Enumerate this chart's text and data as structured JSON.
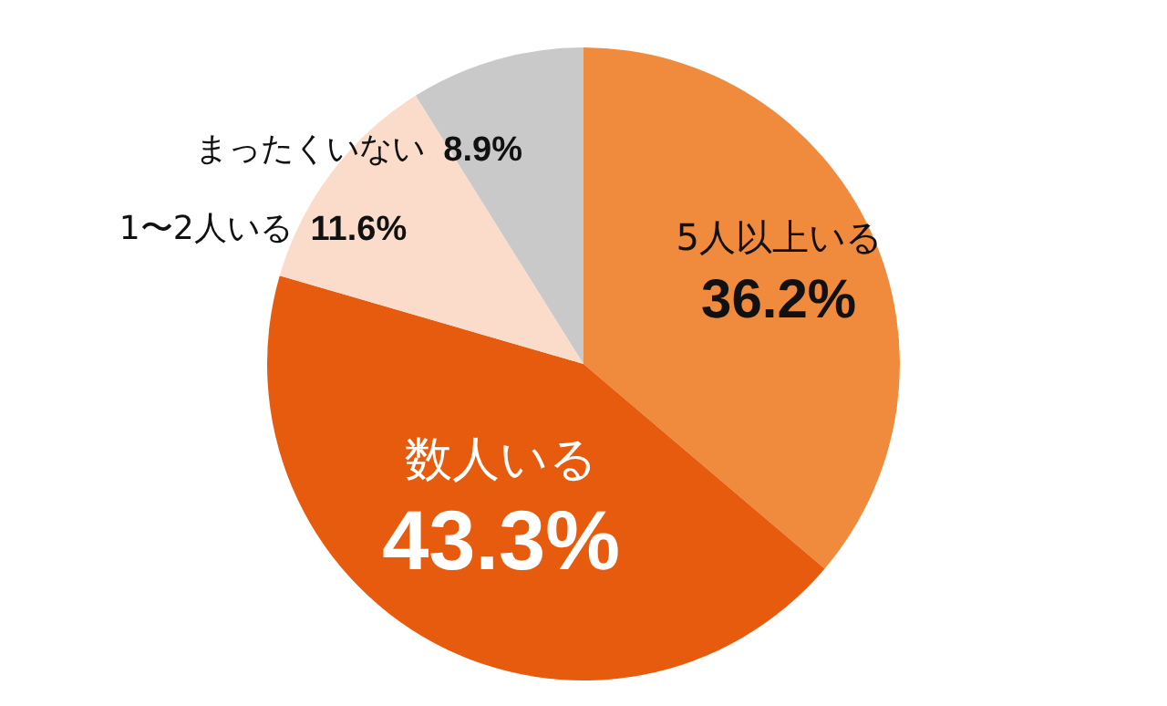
{
  "chart_data": {
    "type": "pie",
    "categories": [
      "5人以上いる",
      "数人いる",
      "1〜2人いる",
      "まったくいない"
    ],
    "values": [
      36.2,
      43.3,
      11.6,
      8.9
    ],
    "colors": [
      "#f08a3c",
      "#e75b0e",
      "#fbdccb",
      "#c9c9c9"
    ],
    "value_labels": [
      "36.2%",
      "43.3%",
      "11.6%",
      "8.9%"
    ],
    "legend": false
  }
}
